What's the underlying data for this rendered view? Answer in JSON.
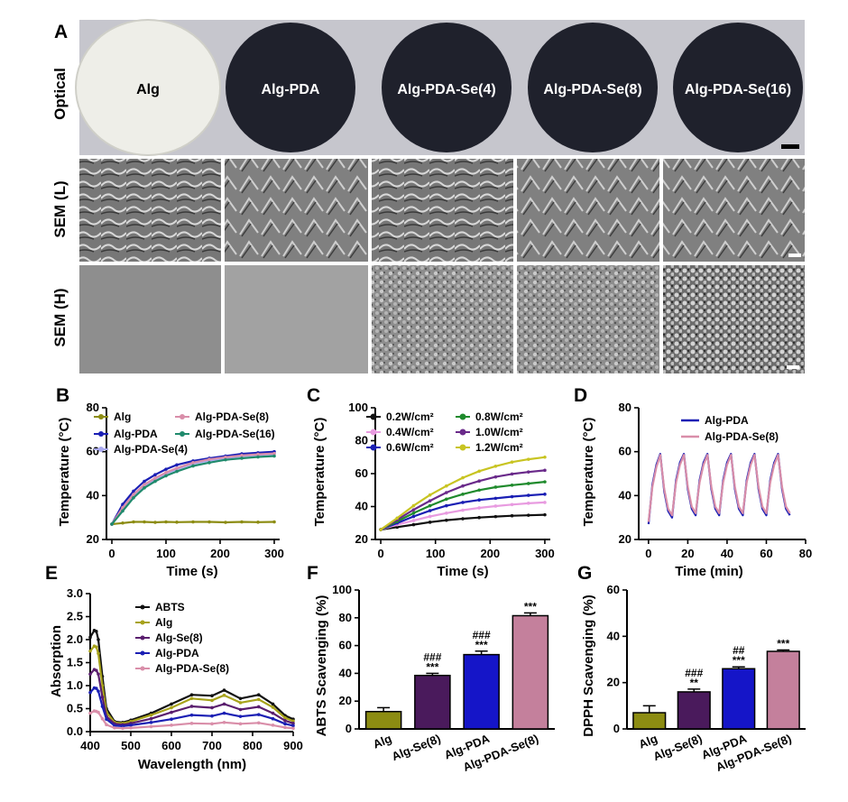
{
  "panel_labels": {
    "A": "A",
    "B": "B",
    "C": "C",
    "D": "D",
    "E": "E",
    "F": "F",
    "G": "G"
  },
  "panel_a": {
    "row_labels": [
      "Optical",
      "SEM (L)",
      "SEM (H)"
    ],
    "samples": [
      "Alg",
      "Alg-PDA",
      "Alg-PDA-Se(4)",
      "Alg-PDA-Se(8)",
      "Alg-PDA-Se(16)"
    ],
    "colors": {
      "alg_disk": "#eeeee8",
      "pda_disk": "#20222e",
      "optical_bg": "#c4c4cc",
      "sem_gray": "#8a8a8a"
    }
  },
  "chart_data": [
    {
      "id": "B",
      "type": "line",
      "xlabel": "Time (s)",
      "ylabel": "Temperature (°C)",
      "xlim": [
        -10,
        310
      ],
      "ylim": [
        20,
        80
      ],
      "xticks": [
        0,
        100,
        200,
        300
      ],
      "yticks": [
        20,
        40,
        60,
        80
      ],
      "legend": "top-left",
      "x": [
        0,
        20,
        40,
        60,
        80,
        100,
        120,
        150,
        180,
        210,
        240,
        270,
        300
      ],
      "series": [
        {
          "name": "Alg",
          "color": "#8c8c12",
          "values": [
            27,
            27.5,
            28,
            28,
            27.8,
            28,
            27.9,
            28,
            28,
            27.8,
            28,
            27.9,
            28
          ]
        },
        {
          "name": "Alg-PDA",
          "color": "#1a1fb4",
          "values": [
            27,
            36,
            42,
            46.5,
            49.5,
            52,
            54,
            55.8,
            57,
            58,
            59,
            59.5,
            60
          ]
        },
        {
          "name": "Alg-PDA-Se(4)",
          "color": "#a9a9f0",
          "values": [
            27,
            34,
            40,
            44.5,
            47.5,
            50,
            52,
            54.5,
            56,
            57,
            58,
            58.5,
            59
          ]
        },
        {
          "name": "Alg-PDA-Se(8)",
          "color": "#d98ea9",
          "values": [
            27,
            34.5,
            40.5,
            45,
            48,
            50.5,
            52.5,
            55,
            56.5,
            57.5,
            58.3,
            58.8,
            59.2
          ]
        },
        {
          "name": "Alg-PDA-Se(16)",
          "color": "#1f8a6c",
          "values": [
            27,
            33,
            39,
            43.5,
            46.5,
            49,
            51,
            53.5,
            55,
            56.3,
            57,
            57.6,
            58
          ]
        }
      ]
    },
    {
      "id": "C",
      "type": "line",
      "xlabel": "Time (s)",
      "ylabel": "Temperature (°C)",
      "xlim": [
        -10,
        310
      ],
      "ylim": [
        20,
        100
      ],
      "xticks": [
        0,
        100,
        200,
        300
      ],
      "yticks": [
        20,
        40,
        60,
        80,
        100
      ],
      "legend": "top-left",
      "x": [
        0,
        30,
        60,
        90,
        120,
        150,
        180,
        210,
        240,
        270,
        300
      ],
      "series": [
        {
          "name": "0.2W/cm²",
          "color": "#111111",
          "values": [
            26,
            27.5,
            29,
            30.5,
            31.7,
            32.6,
            33.3,
            33.9,
            34.4,
            34.7,
            35
          ]
        },
        {
          "name": "0.4W/cm²",
          "color": "#e89be0",
          "values": [
            26,
            29,
            31.5,
            34,
            36,
            37.8,
            39.2,
            40.3,
            41.2,
            42,
            42.5
          ]
        },
        {
          "name": "0.6W/cm²",
          "color": "#1a1fb4",
          "values": [
            26,
            30,
            34,
            37.5,
            40.5,
            42.5,
            44,
            45,
            46,
            46.8,
            47.5
          ]
        },
        {
          "name": "0.8W/cm²",
          "color": "#1f8a2c",
          "values": [
            26,
            31,
            36,
            40.5,
            44.5,
            47.5,
            50,
            51.8,
            53,
            54,
            55
          ]
        },
        {
          "name": "1.0W/cm²",
          "color": "#6a2a8a",
          "values": [
            26,
            32,
            38,
            43.5,
            48.5,
            52.5,
            55.5,
            58,
            59.8,
            61,
            62
          ]
        },
        {
          "name": "1.2W/cm²",
          "color": "#c8c422",
          "values": [
            26,
            33,
            40.5,
            47,
            52.5,
            57.5,
            61.5,
            64.5,
            67,
            68.7,
            70
          ]
        }
      ]
    },
    {
      "id": "D",
      "type": "line",
      "xlabel": "Time (min)",
      "ylabel": "Temperature (°C)",
      "xlim": [
        -5,
        80
      ],
      "ylim": [
        20,
        80
      ],
      "xticks": [
        0,
        20,
        40,
        60,
        80
      ],
      "yticks": [
        20,
        40,
        60,
        80
      ],
      "legend": "top-right",
      "x": [
        0,
        2,
        4,
        6,
        8,
        10,
        12,
        14,
        16,
        18,
        20,
        22,
        24,
        26,
        28,
        30,
        32,
        34,
        36,
        38,
        40,
        42,
        44,
        46,
        48,
        50,
        52,
        54,
        56,
        58,
        60,
        62,
        64,
        66,
        68,
        70,
        72
      ],
      "series": [
        {
          "name": "Alg-PDA",
          "color": "#1a1fb4",
          "values": [
            27,
            45,
            54,
            59,
            42,
            33,
            30,
            47,
            55,
            59,
            43,
            34,
            31,
            47,
            55,
            59,
            43,
            34,
            31,
            47,
            55,
            59,
            43,
            34,
            31,
            47,
            55,
            59,
            43,
            34,
            31,
            47,
            55,
            59,
            43,
            34,
            31
          ]
        },
        {
          "name": "Alg-PDA-Se(8)",
          "color": "#d98ea9",
          "values": [
            28,
            44,
            53,
            58.5,
            43,
            34,
            31,
            46,
            54,
            58.5,
            44,
            35,
            32,
            46,
            54,
            58.5,
            44,
            35,
            32,
            46,
            54,
            58.5,
            44,
            35,
            32,
            46,
            54,
            58.5,
            44,
            35,
            32,
            46,
            54,
            58.5,
            44,
            35,
            32
          ]
        }
      ]
    },
    {
      "id": "E",
      "type": "line",
      "xlabel": "Wavelength (nm)",
      "ylabel": "Absorption",
      "xlim": [
        400,
        900
      ],
      "ylim": [
        0,
        3.0
      ],
      "xticks": [
        400,
        500,
        600,
        700,
        800,
        900
      ],
      "yticks": [
        0,
        0.5,
        1.0,
        1.5,
        2.0,
        2.5,
        3.0
      ],
      "ytick_labels": [
        "0.0",
        "0.5",
        "1.0",
        "1.5",
        "2.0",
        "2.5",
        "3.0"
      ],
      "legend": "top-right",
      "x": [
        400,
        410,
        415,
        420,
        430,
        440,
        460,
        480,
        500,
        550,
        600,
        650,
        700,
        730,
        770,
        815,
        850,
        880,
        900
      ],
      "series": [
        {
          "name": "ABTS",
          "color": "#111111",
          "values": [
            2.05,
            2.2,
            2.18,
            2.0,
            1.2,
            0.5,
            0.22,
            0.2,
            0.25,
            0.4,
            0.6,
            0.8,
            0.78,
            0.9,
            0.72,
            0.8,
            0.6,
            0.35,
            0.27
          ]
        },
        {
          "name": "Alg",
          "color": "#a7a21a",
          "values": [
            1.75,
            1.86,
            1.84,
            1.7,
            1.0,
            0.42,
            0.2,
            0.18,
            0.22,
            0.36,
            0.52,
            0.72,
            0.68,
            0.79,
            0.63,
            0.7,
            0.53,
            0.3,
            0.23
          ]
        },
        {
          "name": "Alg-Se(8)",
          "color": "#5a1e6e",
          "values": [
            1.25,
            1.35,
            1.33,
            1.25,
            0.75,
            0.33,
            0.17,
            0.15,
            0.18,
            0.28,
            0.42,
            0.55,
            0.52,
            0.6,
            0.48,
            0.54,
            0.4,
            0.24,
            0.18
          ]
        },
        {
          "name": "Alg-PDA",
          "color": "#1a1fb4",
          "values": [
            0.85,
            0.95,
            0.94,
            0.88,
            0.55,
            0.27,
            0.13,
            0.12,
            0.14,
            0.2,
            0.27,
            0.36,
            0.34,
            0.4,
            0.33,
            0.37,
            0.28,
            0.17,
            0.13
          ]
        },
        {
          "name": "Alg-PDA-Se(8)",
          "color": "#d98ea9",
          "values": [
            0.4,
            0.45,
            0.44,
            0.42,
            0.28,
            0.15,
            0.08,
            0.07,
            0.08,
            0.11,
            0.14,
            0.18,
            0.17,
            0.2,
            0.17,
            0.19,
            0.14,
            0.09,
            0.07
          ]
        }
      ]
    },
    {
      "id": "F",
      "type": "bar",
      "ylabel": "ABTS Scavenging (%)",
      "ylim": [
        0,
        100
      ],
      "yticks": [
        0,
        20,
        40,
        60,
        80,
        100
      ],
      "categories": [
        "Alg",
        "Alg-Se(8)",
        "Alg-PDA",
        "Alg-PDA-Se(8)"
      ],
      "values": [
        12.5,
        38.5,
        53.5,
        81.5
      ],
      "errors": [
        2.8,
        1.5,
        2.5,
        2.0
      ],
      "colors": [
        "#8c8c12",
        "#4a1a5c",
        "#1515c8",
        "#c4809c"
      ],
      "sig_top": [
        "",
        "***",
        "***",
        "***"
      ],
      "sig_hash": [
        "",
        "###",
        "###",
        ""
      ]
    },
    {
      "id": "G",
      "type": "bar",
      "ylabel": "DPPH Scavenging (%)",
      "ylim": [
        0,
        60
      ],
      "yticks": [
        0,
        20,
        40,
        60
      ],
      "categories": [
        "Alg",
        "Alg-Se(8)",
        "Alg-PDA",
        "Alg-PDA-Se(8)"
      ],
      "values": [
        7.0,
        16.0,
        26.0,
        33.5
      ],
      "errors": [
        3.0,
        1.2,
        0.8,
        0.6
      ],
      "colors": [
        "#8c8c12",
        "#4a1a5c",
        "#1515c8",
        "#c4809c"
      ],
      "sig_top": [
        "",
        "**",
        "***",
        "***"
      ],
      "sig_hash": [
        "",
        "###",
        "##",
        ""
      ]
    }
  ]
}
